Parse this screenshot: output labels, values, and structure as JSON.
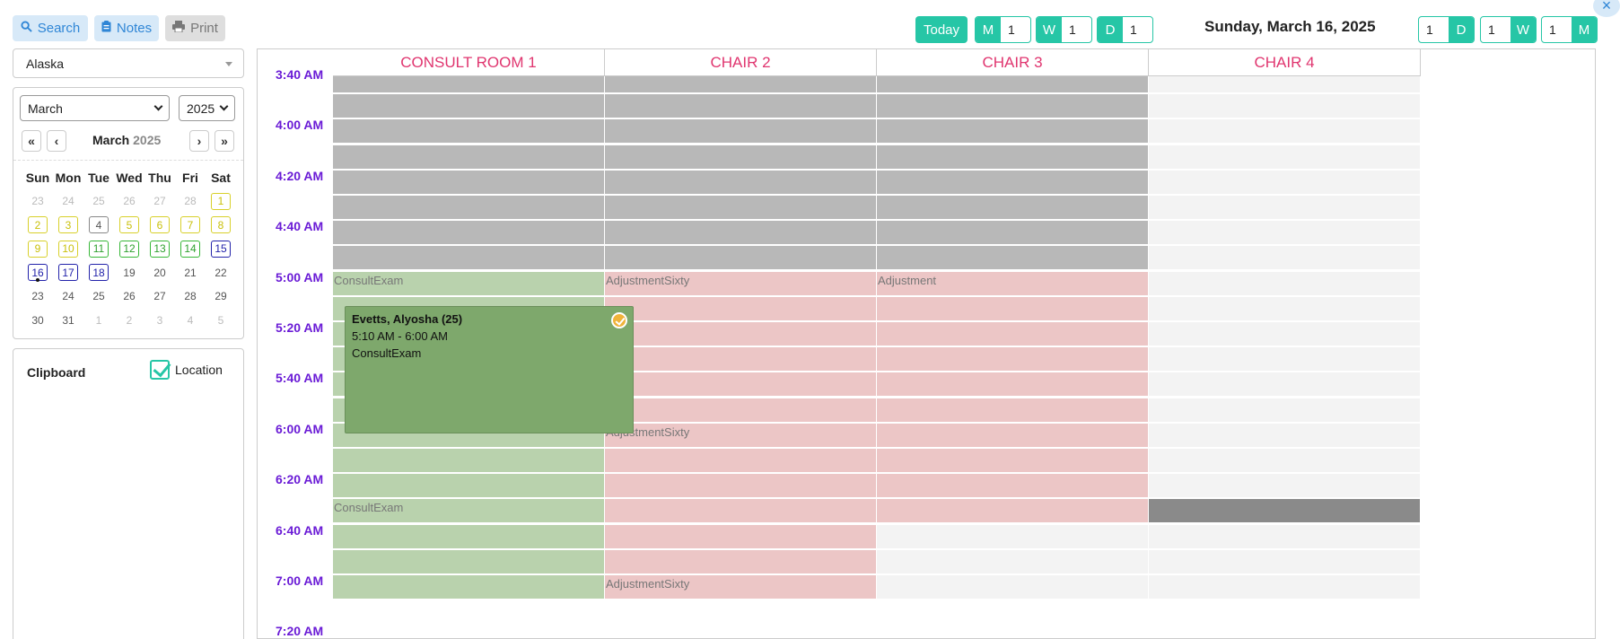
{
  "toolbar": {
    "search_label": "Search",
    "notes_label": "Notes",
    "print_label": "Print",
    "today_label": "Today",
    "steppers_left": [
      {
        "label": "M",
        "value": "1"
      },
      {
        "label": "W",
        "value": "1"
      },
      {
        "label": "D",
        "value": "1"
      }
    ],
    "steppers_right": [
      {
        "label": "D",
        "value": "1"
      },
      {
        "label": "W",
        "value": "1"
      },
      {
        "label": "M",
        "value": "1"
      }
    ],
    "date_title": "Sunday, March 16, 2025",
    "close_label": "×"
  },
  "sidebar": {
    "location": "Alaska",
    "calendar": {
      "month_select": "March",
      "year_select": "2025",
      "title_month": "March",
      "title_year": "2025",
      "nav": {
        "prev_year": "«",
        "prev": "‹",
        "next": "›",
        "next_year": "»"
      },
      "dow": [
        "Sun",
        "Mon",
        "Tue",
        "Wed",
        "Thu",
        "Fri",
        "Sat"
      ],
      "days": [
        {
          "d": "23",
          "s": "out"
        },
        {
          "d": "24",
          "s": "out"
        },
        {
          "d": "25",
          "s": "out"
        },
        {
          "d": "26",
          "s": "out"
        },
        {
          "d": "27",
          "s": "out"
        },
        {
          "d": "28",
          "s": "out"
        },
        {
          "d": "1",
          "s": "yellow"
        },
        {
          "d": "2",
          "s": "yellow"
        },
        {
          "d": "3",
          "s": "yellow"
        },
        {
          "d": "4",
          "s": "grey"
        },
        {
          "d": "5",
          "s": "yellow"
        },
        {
          "d": "6",
          "s": "yellow"
        },
        {
          "d": "7",
          "s": "yellow"
        },
        {
          "d": "8",
          "s": "yellow"
        },
        {
          "d": "9",
          "s": "yellow"
        },
        {
          "d": "10",
          "s": "yellow"
        },
        {
          "d": "11",
          "s": "green"
        },
        {
          "d": "12",
          "s": "green"
        },
        {
          "d": "13",
          "s": "green"
        },
        {
          "d": "14",
          "s": "green"
        },
        {
          "d": "15",
          "s": "blue"
        },
        {
          "d": "16",
          "s": "blue today"
        },
        {
          "d": "17",
          "s": "blue"
        },
        {
          "d": "18",
          "s": "blue"
        },
        {
          "d": "19",
          "s": "plain"
        },
        {
          "d": "20",
          "s": "plain"
        },
        {
          "d": "21",
          "s": "plain"
        },
        {
          "d": "22",
          "s": "plain"
        },
        {
          "d": "23",
          "s": "plain"
        },
        {
          "d": "24",
          "s": "plain"
        },
        {
          "d": "25",
          "s": "plain"
        },
        {
          "d": "26",
          "s": "plain"
        },
        {
          "d": "27",
          "s": "plain"
        },
        {
          "d": "28",
          "s": "plain"
        },
        {
          "d": "29",
          "s": "plain"
        },
        {
          "d": "30",
          "s": "plain"
        },
        {
          "d": "31",
          "s": "plain"
        },
        {
          "d": "1",
          "s": "out"
        },
        {
          "d": "2",
          "s": "out"
        },
        {
          "d": "3",
          "s": "out"
        },
        {
          "d": "4",
          "s": "out"
        },
        {
          "d": "5",
          "s": "out"
        }
      ]
    },
    "clipboard": {
      "title": "Clipboard",
      "location_label": "Location",
      "location_checked": true
    }
  },
  "scheduler": {
    "columns": [
      "CONSULT ROOM 1",
      "CHAIR 2",
      "CHAIR 3",
      "CHAIR 4"
    ],
    "time_labels": [
      "3:40 AM",
      "4:00 AM",
      "4:20 AM",
      "4:40 AM",
      "5:00 AM",
      "5:20 AM",
      "5:40 AM",
      "6:00 AM",
      "6:20 AM",
      "6:40 AM",
      "7:00 AM",
      "7:20 AM"
    ],
    "slot_labels": [
      {
        "col": 0,
        "row": 8,
        "text": "ConsultExam"
      },
      {
        "col": 1,
        "row": 8,
        "text": "AdjustmentSixty"
      },
      {
        "col": 2,
        "row": 8,
        "text": "Adjustment"
      },
      {
        "col": 1,
        "row": 14,
        "text": "AdjustmentSixty"
      },
      {
        "col": 0,
        "row": 17,
        "text": "ConsultExam"
      },
      {
        "col": 1,
        "row": 20,
        "text": "AdjustmentSixty"
      }
    ],
    "appointment": {
      "patient": "Evetts, Alyosha (25)",
      "time": "5:10 AM - 6:00 AM",
      "type": "ConsultExam",
      "confirmed": true
    }
  }
}
